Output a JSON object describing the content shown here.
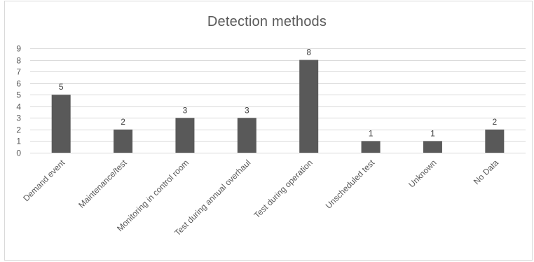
{
  "chart_data": {
    "type": "bar",
    "title": "Detection methods",
    "xlabel": "",
    "ylabel": "",
    "categories": [
      "Demand event",
      "Maintenance/test",
      "Monitoring in control room",
      "Test during annual overhaul",
      "Test during operation",
      "Unscheduled test",
      "Unknown",
      "No Data"
    ],
    "values": [
      5,
      2,
      3,
      3,
      8,
      1,
      1,
      2
    ],
    "ylim": [
      0,
      9
    ],
    "yticks": [
      "0",
      "1",
      "2",
      "3",
      "4",
      "5",
      "6",
      "7",
      "8",
      "9"
    ],
    "grid": true,
    "legend": "none",
    "data_labels": true,
    "bar_color": "#595959",
    "grid_color": "#d9d9d9"
  }
}
